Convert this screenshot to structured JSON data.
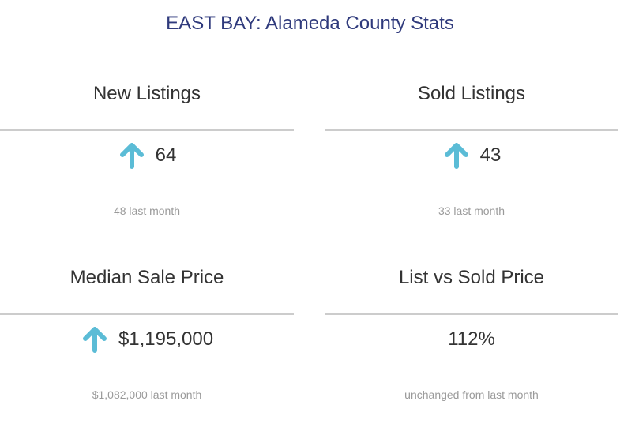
{
  "page": {
    "title": "EAST BAY: Alameda County Stats"
  },
  "colors": {
    "title": "#2f3a7c",
    "arrow_up": "#5bbcd6",
    "divider": "#cccccc",
    "subtext": "#9a9a9a"
  },
  "cards": [
    {
      "title": "New Listings",
      "value": "64",
      "trend_icon": "arrow-up-icon",
      "subtext": "48 last month"
    },
    {
      "title": "Sold Listings",
      "value": "43",
      "trend_icon": "arrow-up-icon",
      "subtext": "33 last month"
    },
    {
      "title": "Median Sale Price",
      "value": "$1,195,000",
      "trend_icon": "arrow-up-icon",
      "subtext": "$1,082,000 last month"
    },
    {
      "title": "List vs Sold Price",
      "value": "112%",
      "trend_icon": "",
      "subtext": "unchanged from last month"
    }
  ]
}
